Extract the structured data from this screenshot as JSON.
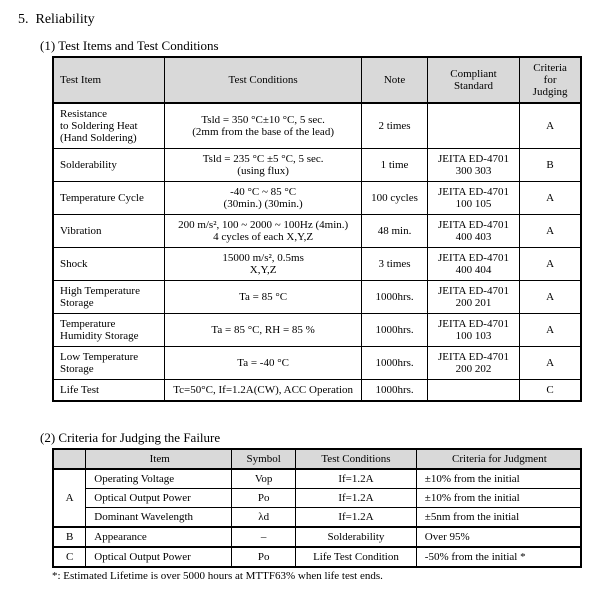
{
  "section_number": "5.",
  "section_title": "Reliability",
  "sub1_title": "(1) Test Items and Test Conditions",
  "t1": {
    "headers": {
      "item": "Test Item",
      "cond": "Test Conditions",
      "note": "Note",
      "std": "Compliant Standard",
      "crit": "Criteria for Judging"
    },
    "rows": [
      {
        "item": "Resistance\nto Soldering Heat\n(Hand Soldering)",
        "cond": "Tsld = 350 °C±10 °C,   5 sec.\n(2mm from the base of the lead)",
        "note": "2 times",
        "std": "",
        "crit": "A"
      },
      {
        "item": "Solderability",
        "cond": "Tsld = 235 °C ±5 °C,   5 sec.\n(using flux)",
        "note": "1 time",
        "std": "JEITA ED-4701\n300 303",
        "crit": "B"
      },
      {
        "item": "Temperature Cycle",
        "cond": "-40 °C ~ 85 °C\n(30min.)      (30min.)",
        "note": "100 cycles",
        "std": "JEITA ED-4701\n100 105",
        "crit": "A"
      },
      {
        "item": "Vibration",
        "cond": "200 m/s²,   100 ~ 2000 ~ 100Hz (4min.)\n4 cycles of each X,Y,Z",
        "note": "48 min.",
        "std": "JEITA ED-4701\n400 403",
        "crit": "A"
      },
      {
        "item": "Shock",
        "cond": "15000 m/s²,   0.5ms\nX,Y,Z",
        "note": "3 times",
        "std": "JEITA ED-4701\n400 404",
        "crit": "A"
      },
      {
        "item": "High Temperature\nStorage",
        "cond": "Ta = 85 °C",
        "note": "1000hrs.",
        "std": "JEITA ED-4701\n200 201",
        "crit": "A"
      },
      {
        "item": "Temperature\nHumidity Storage",
        "cond": "Ta = 85 °C,   RH = 85 %",
        "note": "1000hrs.",
        "std": "JEITA ED-4701\n100 103",
        "crit": "A"
      },
      {
        "item": "Low Temperature\nStorage",
        "cond": "Ta = -40 °C",
        "note": "1000hrs.",
        "std": "JEITA ED-4701\n200 202",
        "crit": "A"
      },
      {
        "item": "Life Test",
        "cond": "Tc=50°C,   If=1.2A(CW),   ACC Operation",
        "note": "1000hrs.",
        "std": "",
        "crit": "C"
      }
    ]
  },
  "sub2_title": "(2) Criteria for Judging the Failure",
  "t2": {
    "headers": {
      "item": "Item",
      "sym": "Symbol",
      "cond": "Test Conditions",
      "crit": "Criteria for Judgment"
    },
    "rows": [
      {
        "grp": "A",
        "grp_rows": 3,
        "item": "Operating Voltage",
        "sym": "Vop",
        "cond": "If=1.2A",
        "crit": "±10% from the initial"
      },
      {
        "grp": "",
        "item": "Optical Output Power",
        "sym": "Po",
        "cond": "If=1.2A",
        "crit": "±10% from the initial"
      },
      {
        "grp": "",
        "item": "Dominant Wavelength",
        "sym": "λd",
        "cond": "If=1.2A",
        "crit": "±5nm from the initial"
      },
      {
        "grp": "B",
        "grp_rows": 1,
        "item": "Appearance",
        "sym": "–",
        "cond": "Solderability",
        "crit": "Over 95%"
      },
      {
        "grp": "C",
        "grp_rows": 1,
        "item": "Optical Output Power",
        "sym": "Po",
        "cond": "Life Test Condition",
        "crit": "-50% from the initial *"
      }
    ]
  },
  "footnote": "*: Estimated Lifetime is over 5000 hours at MTTF63% when life test ends."
}
